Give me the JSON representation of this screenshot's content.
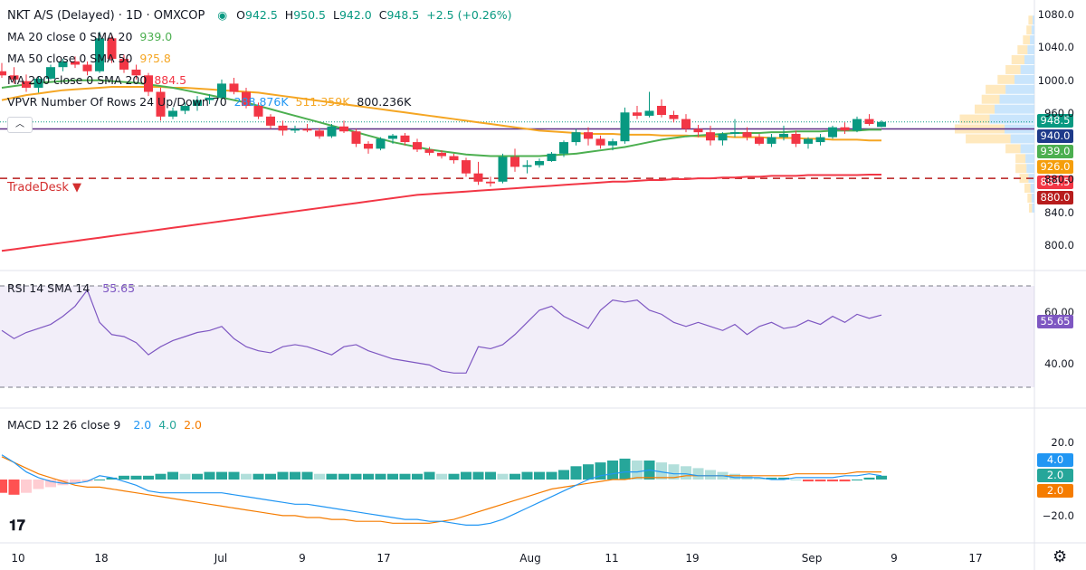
{
  "header": {
    "symbol": "NKT A/S (Delayed) · 1D · OMXCOP",
    "open_label": "O",
    "open": "942.5",
    "high_label": "H",
    "high": "950.5",
    "low_label": "L",
    "low": "942.0",
    "close_label": "C",
    "close": "948.5",
    "change": "+2.5 (+0.26%)"
  },
  "indicators": {
    "ma20": {
      "label": "MA 20 close 0 SMA 20",
      "value": "939.0",
      "color": "#4caf50"
    },
    "ma50": {
      "label": "MA 50 close 0 SMA 50",
      "value": "926.0",
      "value_shown": "9?5.8",
      "color": "#f5a623"
    },
    "ma200": {
      "label": "MA 200 close 0 SMA 200",
      "value": "884.5",
      "color": "#f23645"
    },
    "vpvr": {
      "label": "VPVR Number Of Rows 24 Up/Down 70",
      "up": "288.876K",
      "down": "511.359K",
      "total": "800.236K"
    }
  },
  "price_tags": [
    {
      "value": "948.5",
      "color": "#089981"
    },
    {
      "value": "940.0",
      "color": "#1e3a8a"
    },
    {
      "value": "939.0",
      "color": "#4caf50"
    },
    {
      "value": "926.0",
      "color": "#f59e0b"
    },
    {
      "value": "884.5",
      "color": "#f23645"
    },
    {
      "value": "880.0",
      "color": "#b71c1c"
    }
  ],
  "annotation": {
    "tradedesk": "TradeDesk ▼"
  },
  "rsi": {
    "label": "RSI 14 SMA 14",
    "value": "55.65",
    "color": "#7e57c2",
    "ticks": [
      "60.00",
      "40.00"
    ]
  },
  "macd": {
    "label": "MACD 12 26 close 9",
    "macd": "2.0",
    "signal": "4.0",
    "hist": "2.0",
    "tags": [
      {
        "value": "4.0",
        "color": "#2196f3"
      },
      {
        "value": "2.0",
        "color": "#26a69a"
      },
      {
        "value": "2.0",
        "color": "#f57c00"
      }
    ],
    "ticks": [
      "20.0",
      "−20.0"
    ]
  },
  "chart_data": {
    "type": "candlestick",
    "title": "NKT A/S (Delayed) · 1D · OMXCOP",
    "price_ticks": [
      "1080.0",
      "1040.0",
      "1000.0",
      "960.0",
      "880.0",
      "840.0",
      "800.0"
    ],
    "x_ticks": [
      "10",
      "18",
      "Jul",
      "9",
      "17",
      "Aug",
      "11",
      "19",
      "Sep",
      "9",
      "17"
    ],
    "ylim": [
      780,
      1080
    ],
    "candles": [
      {
        "o": 1010,
        "h": 1020,
        "l": 1002,
        "c": 1005
      },
      {
        "o": 1005,
        "h": 1015,
        "l": 995,
        "c": 1000
      },
      {
        "o": 998,
        "h": 1006,
        "l": 985,
        "c": 990
      },
      {
        "o": 990,
        "h": 1004,
        "l": 984,
        "c": 1001
      },
      {
        "o": 1001,
        "h": 1018,
        "l": 1000,
        "c": 1015
      },
      {
        "o": 1015,
        "h": 1025,
        "l": 1010,
        "c": 1022
      },
      {
        "o": 1022,
        "h": 1028,
        "l": 1014,
        "c": 1018
      },
      {
        "o": 1018,
        "h": 1022,
        "l": 1005,
        "c": 1010
      },
      {
        "o": 1010,
        "h": 1058,
        "l": 1008,
        "c": 1050
      },
      {
        "o": 1050,
        "h": 1055,
        "l": 1020,
        "c": 1025
      },
      {
        "o": 1025,
        "h": 1030,
        "l": 1008,
        "c": 1012
      },
      {
        "o": 1012,
        "h": 1018,
        "l": 1000,
        "c": 1005
      },
      {
        "o": 1005,
        "h": 1008,
        "l": 980,
        "c": 985
      },
      {
        "o": 985,
        "h": 990,
        "l": 950,
        "c": 955
      },
      {
        "o": 955,
        "h": 966,
        "l": 952,
        "c": 962
      },
      {
        "o": 962,
        "h": 972,
        "l": 958,
        "c": 968
      },
      {
        "o": 968,
        "h": 980,
        "l": 962,
        "c": 975
      },
      {
        "o": 975,
        "h": 982,
        "l": 970,
        "c": 978
      },
      {
        "o": 978,
        "h": 1000,
        "l": 975,
        "c": 995
      },
      {
        "o": 995,
        "h": 1002,
        "l": 982,
        "c": 985
      },
      {
        "o": 985,
        "h": 990,
        "l": 965,
        "c": 968
      },
      {
        "o": 968,
        "h": 972,
        "l": 952,
        "c": 955
      },
      {
        "o": 955,
        "h": 958,
        "l": 940,
        "c": 944
      },
      {
        "o": 944,
        "h": 950,
        "l": 932,
        "c": 938
      },
      {
        "o": 938,
        "h": 944,
        "l": 935,
        "c": 940
      },
      {
        "o": 940,
        "h": 946,
        "l": 936,
        "c": 938
      },
      {
        "o": 938,
        "h": 941,
        "l": 928,
        "c": 931
      },
      {
        "o": 931,
        "h": 946,
        "l": 929,
        "c": 943
      },
      {
        "o": 943,
        "h": 950,
        "l": 935,
        "c": 937
      },
      {
        "o": 937,
        "h": 940,
        "l": 918,
        "c": 922
      },
      {
        "o": 922,
        "h": 925,
        "l": 910,
        "c": 916
      },
      {
        "o": 916,
        "h": 930,
        "l": 914,
        "c": 928
      },
      {
        "o": 928,
        "h": 934,
        "l": 922,
        "c": 932
      },
      {
        "o": 932,
        "h": 935,
        "l": 920,
        "c": 924
      },
      {
        "o": 924,
        "h": 928,
        "l": 912,
        "c": 915
      },
      {
        "o": 915,
        "h": 918,
        "l": 908,
        "c": 911
      },
      {
        "o": 911,
        "h": 914,
        "l": 904,
        "c": 907
      },
      {
        "o": 907,
        "h": 910,
        "l": 898,
        "c": 902
      },
      {
        "o": 902,
        "h": 905,
        "l": 882,
        "c": 886
      },
      {
        "o": 886,
        "h": 900,
        "l": 872,
        "c": 876
      },
      {
        "o": 876,
        "h": 882,
        "l": 870,
        "c": 874
      },
      {
        "o": 876,
        "h": 910,
        "l": 874,
        "c": 906
      },
      {
        "o": 906,
        "h": 916,
        "l": 888,
        "c": 894
      },
      {
        "o": 894,
        "h": 902,
        "l": 886,
        "c": 896
      },
      {
        "o": 896,
        "h": 904,
        "l": 893,
        "c": 901
      },
      {
        "o": 901,
        "h": 912,
        "l": 900,
        "c": 910
      },
      {
        "o": 910,
        "h": 926,
        "l": 906,
        "c": 924
      },
      {
        "o": 924,
        "h": 940,
        "l": 920,
        "c": 936
      },
      {
        "o": 936,
        "h": 942,
        "l": 920,
        "c": 928
      },
      {
        "o": 928,
        "h": 932,
        "l": 916,
        "c": 920
      },
      {
        "o": 920,
        "h": 928,
        "l": 914,
        "c": 925
      },
      {
        "o": 925,
        "h": 966,
        "l": 922,
        "c": 960
      },
      {
        "o": 960,
        "h": 968,
        "l": 952,
        "c": 956
      },
      {
        "o": 956,
        "h": 985,
        "l": 954,
        "c": 962
      },
      {
        "o": 968,
        "h": 976,
        "l": 954,
        "c": 957
      },
      {
        "o": 957,
        "h": 962,
        "l": 948,
        "c": 952
      },
      {
        "o": 952,
        "h": 958,
        "l": 936,
        "c": 940
      },
      {
        "o": 940,
        "h": 945,
        "l": 930,
        "c": 936
      },
      {
        "o": 936,
        "h": 944,
        "l": 920,
        "c": 926
      },
      {
        "o": 926,
        "h": 936,
        "l": 920,
        "c": 934
      },
      {
        "o": 934,
        "h": 952,
        "l": 930,
        "c": 936
      },
      {
        "o": 936,
        "h": 942,
        "l": 926,
        "c": 930
      },
      {
        "o": 930,
        "h": 934,
        "l": 920,
        "c": 922
      },
      {
        "o": 922,
        "h": 934,
        "l": 918,
        "c": 930
      },
      {
        "o": 930,
        "h": 944,
        "l": 926,
        "c": 934
      },
      {
        "o": 934,
        "h": 938,
        "l": 918,
        "c": 922
      },
      {
        "o": 922,
        "h": 930,
        "l": 916,
        "c": 928
      },
      {
        "o": 924,
        "h": 934,
        "l": 920,
        "c": 930
      },
      {
        "o": 930,
        "h": 944,
        "l": 928,
        "c": 942
      },
      {
        "o": 942,
        "h": 948,
        "l": 934,
        "c": 938
      },
      {
        "o": 938,
        "h": 955,
        "l": 936,
        "c": 952
      },
      {
        "o": 952,
        "h": 958,
        "l": 944,
        "c": 946
      },
      {
        "o": 942.5,
        "h": 950.5,
        "l": 942,
        "c": 948.5
      }
    ],
    "ma20": [
      990,
      992,
      994,
      996,
      997,
      998,
      999,
      999,
      999,
      998,
      997,
      996,
      994,
      992,
      990,
      987,
      984,
      981,
      978,
      975,
      972,
      968,
      964,
      960,
      956,
      952,
      948,
      944,
      940,
      936,
      932,
      928,
      924,
      921,
      918,
      915,
      913,
      911,
      909,
      908,
      907,
      907,
      907,
      907,
      907,
      908,
      909,
      910,
      912,
      914,
      916,
      918,
      921,
      924,
      927,
      929,
      931,
      932,
      933,
      934,
      935,
      935,
      935,
      936,
      936,
      937,
      937,
      937,
      938,
      938,
      938,
      939,
      939
    ],
    "ma50": [
      975,
      978,
      981,
      983,
      985,
      987,
      988,
      989,
      990,
      991,
      991,
      991,
      991,
      991,
      990,
      990,
      989,
      988,
      987,
      986,
      985,
      984,
      982,
      980,
      978,
      976,
      974,
      972,
      970,
      968,
      966,
      964,
      962,
      960,
      958,
      956,
      954,
      952,
      950,
      948,
      946,
      944,
      942,
      940,
      938,
      937,
      936,
      935,
      934,
      934,
      934,
      933,
      933,
      933,
      932,
      932,
      932,
      931,
      931,
      931,
      930,
      930,
      930,
      929,
      929,
      929,
      928,
      928,
      927,
      927,
      927,
      926,
      926
    ],
    "ma200": [
      792,
      794,
      796,
      798,
      800,
      802,
      804,
      806,
      808,
      810,
      812,
      814,
      816,
      818,
      820,
      822,
      824,
      826,
      828,
      830,
      832,
      834,
      836,
      838,
      840,
      842,
      844,
      846,
      848,
      850,
      852,
      854,
      856,
      858,
      860,
      861,
      862,
      863,
      864,
      865,
      866,
      867,
      868,
      869,
      870,
      871,
      872,
      873,
      874,
      875,
      876,
      876,
      877,
      878,
      878,
      879,
      879,
      880,
      880,
      881,
      881,
      882,
      882,
      883,
      883,
      883,
      884,
      884,
      884,
      884,
      884,
      884.5,
      884.5
    ],
    "rsi": [
      48,
      44,
      47,
      49,
      51,
      55,
      60,
      68,
      52,
      46,
      45,
      42,
      36,
      40,
      43,
      45,
      47,
      48,
      50,
      44,
      40,
      38,
      37,
      40,
      41,
      40,
      38,
      36,
      40,
      41,
      38,
      36,
      34,
      33,
      32,
      31,
      28,
      27,
      27,
      40,
      39,
      41,
      46,
      52,
      58,
      60,
      55,
      52,
      49,
      58,
      63,
      62,
      63,
      58,
      56,
      52,
      50,
      52,
      50,
      48,
      51,
      46,
      50,
      52,
      49,
      50,
      53,
      51,
      55,
      52,
      56,
      54,
      55.65
    ],
    "macd": [
      13,
      9,
      4,
      1,
      -1,
      -2,
      -2,
      -1,
      2,
      1,
      -1,
      -3,
      -6,
      -7,
      -7,
      -7,
      -7,
      -7,
      -7,
      -8,
      -9,
      -10,
      -11,
      -12,
      -13,
      -13,
      -14,
      -15,
      -16,
      -17,
      -18,
      -19,
      -20,
      -21,
      -21,
      -22,
      -22,
      -23,
      -24,
      -24,
      -23,
      -21,
      -18,
      -15,
      -12,
      -9,
      -6,
      -3,
      0,
      2,
      3,
      4,
      4,
      5,
      4,
      3,
      3,
      2,
      2,
      2,
      1,
      1,
      1,
      0,
      0,
      1,
      1,
      1,
      1,
      2,
      2,
      3,
      2
    ],
    "signal": [
      12,
      9,
      6,
      3,
      1,
      -1,
      -3,
      -4,
      -4,
      -5,
      -6,
      -7,
      -8,
      -9,
      -10,
      -11,
      -12,
      -13,
      -14,
      -15,
      -16,
      -17,
      -18,
      -19,
      -19,
      -20,
      -20,
      -21,
      -21,
      -22,
      -22,
      -22,
      -23,
      -23,
      -23,
      -23,
      -22,
      -21,
      -19,
      -17,
      -15,
      -13,
      -11,
      -9,
      -7,
      -5,
      -4,
      -3,
      -2,
      -1,
      0,
      0,
      1,
      1,
      1,
      1,
      2,
      2,
      2,
      2,
      2,
      2,
      2,
      2,
      2,
      3,
      3,
      3,
      3,
      3,
      4,
      4,
      4
    ],
    "hist": [
      -7,
      -8,
      -7,
      -5,
      -4,
      -3,
      -2,
      -1,
      0,
      1,
      2,
      2,
      2,
      3,
      4,
      3,
      3,
      4,
      4,
      4,
      3,
      3,
      3,
      4,
      4,
      4,
      3,
      3,
      3,
      3,
      3,
      3,
      3,
      3,
      3,
      4,
      3,
      3,
      4,
      4,
      4,
      3,
      3,
      4,
      4,
      4,
      5,
      7,
      8,
      9,
      10,
      11,
      10,
      10,
      9,
      8,
      7,
      6,
      5,
      4,
      3,
      2,
      1,
      1,
      1,
      0,
      -1,
      -1,
      -1,
      -1,
      0,
      1,
      2
    ],
    "vpvr_rows": [
      {
        "price": 1072,
        "up": 8,
        "down": 4
      },
      {
        "price": 1060,
        "up": 10,
        "down": 6
      },
      {
        "price": 1048,
        "up": 14,
        "down": 9
      },
      {
        "price": 1036,
        "up": 20,
        "down": 14
      },
      {
        "price": 1024,
        "up": 26,
        "down": 20
      },
      {
        "price": 1012,
        "up": 30,
        "down": 28
      },
      {
        "price": 1000,
        "up": 34,
        "down": 40
      },
      {
        "price": 988,
        "up": 40,
        "down": 58
      },
      {
        "price": 976,
        "up": 36,
        "down": 70
      },
      {
        "price": 964,
        "up": 40,
        "down": 80
      },
      {
        "price": 952,
        "up": 60,
        "down": 90
      },
      {
        "price": 940,
        "up": 100,
        "down": 60
      },
      {
        "price": 928,
        "up": 90,
        "down": 48
      },
      {
        "price": 916,
        "up": 30,
        "down": 28
      },
      {
        "price": 904,
        "up": 20,
        "down": 18
      },
      {
        "price": 892,
        "up": 22,
        "down": 16
      },
      {
        "price": 880,
        "up": 18,
        "down": 12
      },
      {
        "price": 868,
        "up": 12,
        "down": 8
      },
      {
        "price": 856,
        "up": 8,
        "down": 6
      },
      {
        "price": 844,
        "up": 6,
        "down": 5
      }
    ]
  }
}
